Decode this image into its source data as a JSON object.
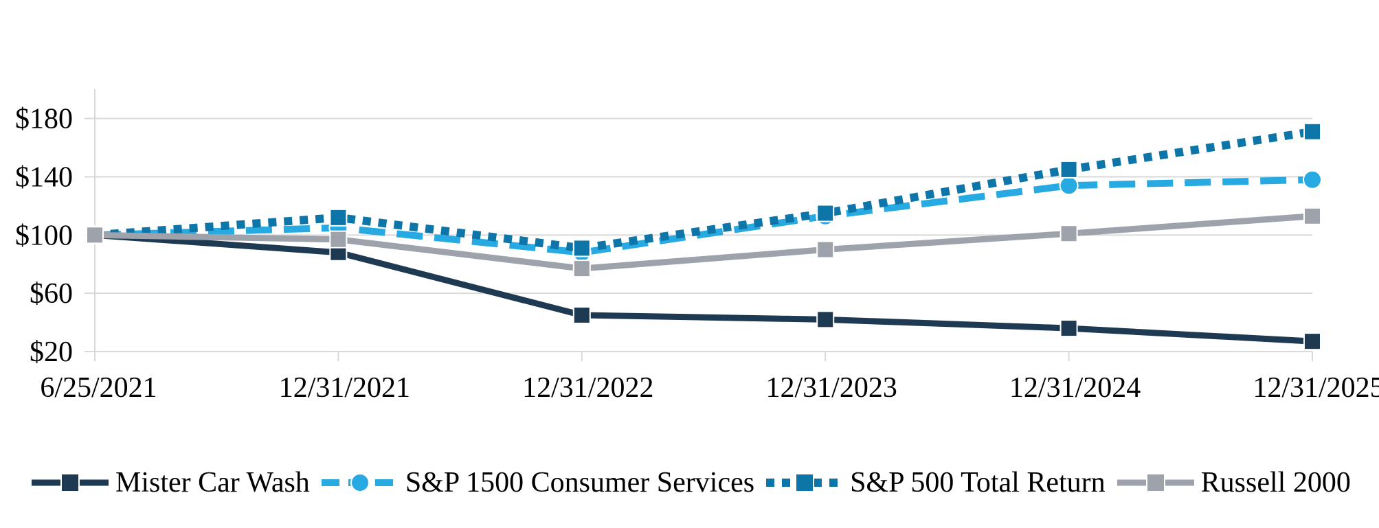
{
  "chart_data": {
    "type": "line",
    "title": "",
    "x_categories": [
      "6/25/2021",
      "12/31/2021",
      "12/31/2022",
      "12/31/2023",
      "12/31/2024",
      "12/31/2025"
    ],
    "y_axis": {
      "tick_values": [
        20,
        60,
        100,
        140,
        180
      ],
      "tick_labels": [
        "$20",
        "$60",
        "$100",
        "$140",
        "$180"
      ],
      "min": 20,
      "max": 200,
      "prefix": "$"
    },
    "series": [
      {
        "name": "Mister Car Wash",
        "color": "#1E3A53",
        "line_style": "solid",
        "marker": "square",
        "values": [
          100,
          88,
          45,
          42,
          36,
          27
        ]
      },
      {
        "name": "S&P 1500 Consumer Services",
        "color": "#27AAE1",
        "line_style": "dashed",
        "marker": "circle",
        "values": [
          100,
          105,
          88,
          113,
          134,
          138
        ]
      },
      {
        "name": "S&P 500 Total Return",
        "color": "#0E75A8",
        "line_style": "dotted",
        "marker": "square",
        "values": [
          100,
          112,
          91,
          115,
          145,
          171
        ]
      },
      {
        "name": "Russell 2000",
        "color": "#9EA3AB",
        "line_style": "solid",
        "marker": "square",
        "values": [
          100,
          97,
          77,
          90,
          101,
          113
        ]
      }
    ],
    "gridline_color": "#D9D9D9",
    "text_color": "#000000",
    "grid": true,
    "legend_position": "bottom",
    "xlabel": "",
    "ylabel": ""
  }
}
